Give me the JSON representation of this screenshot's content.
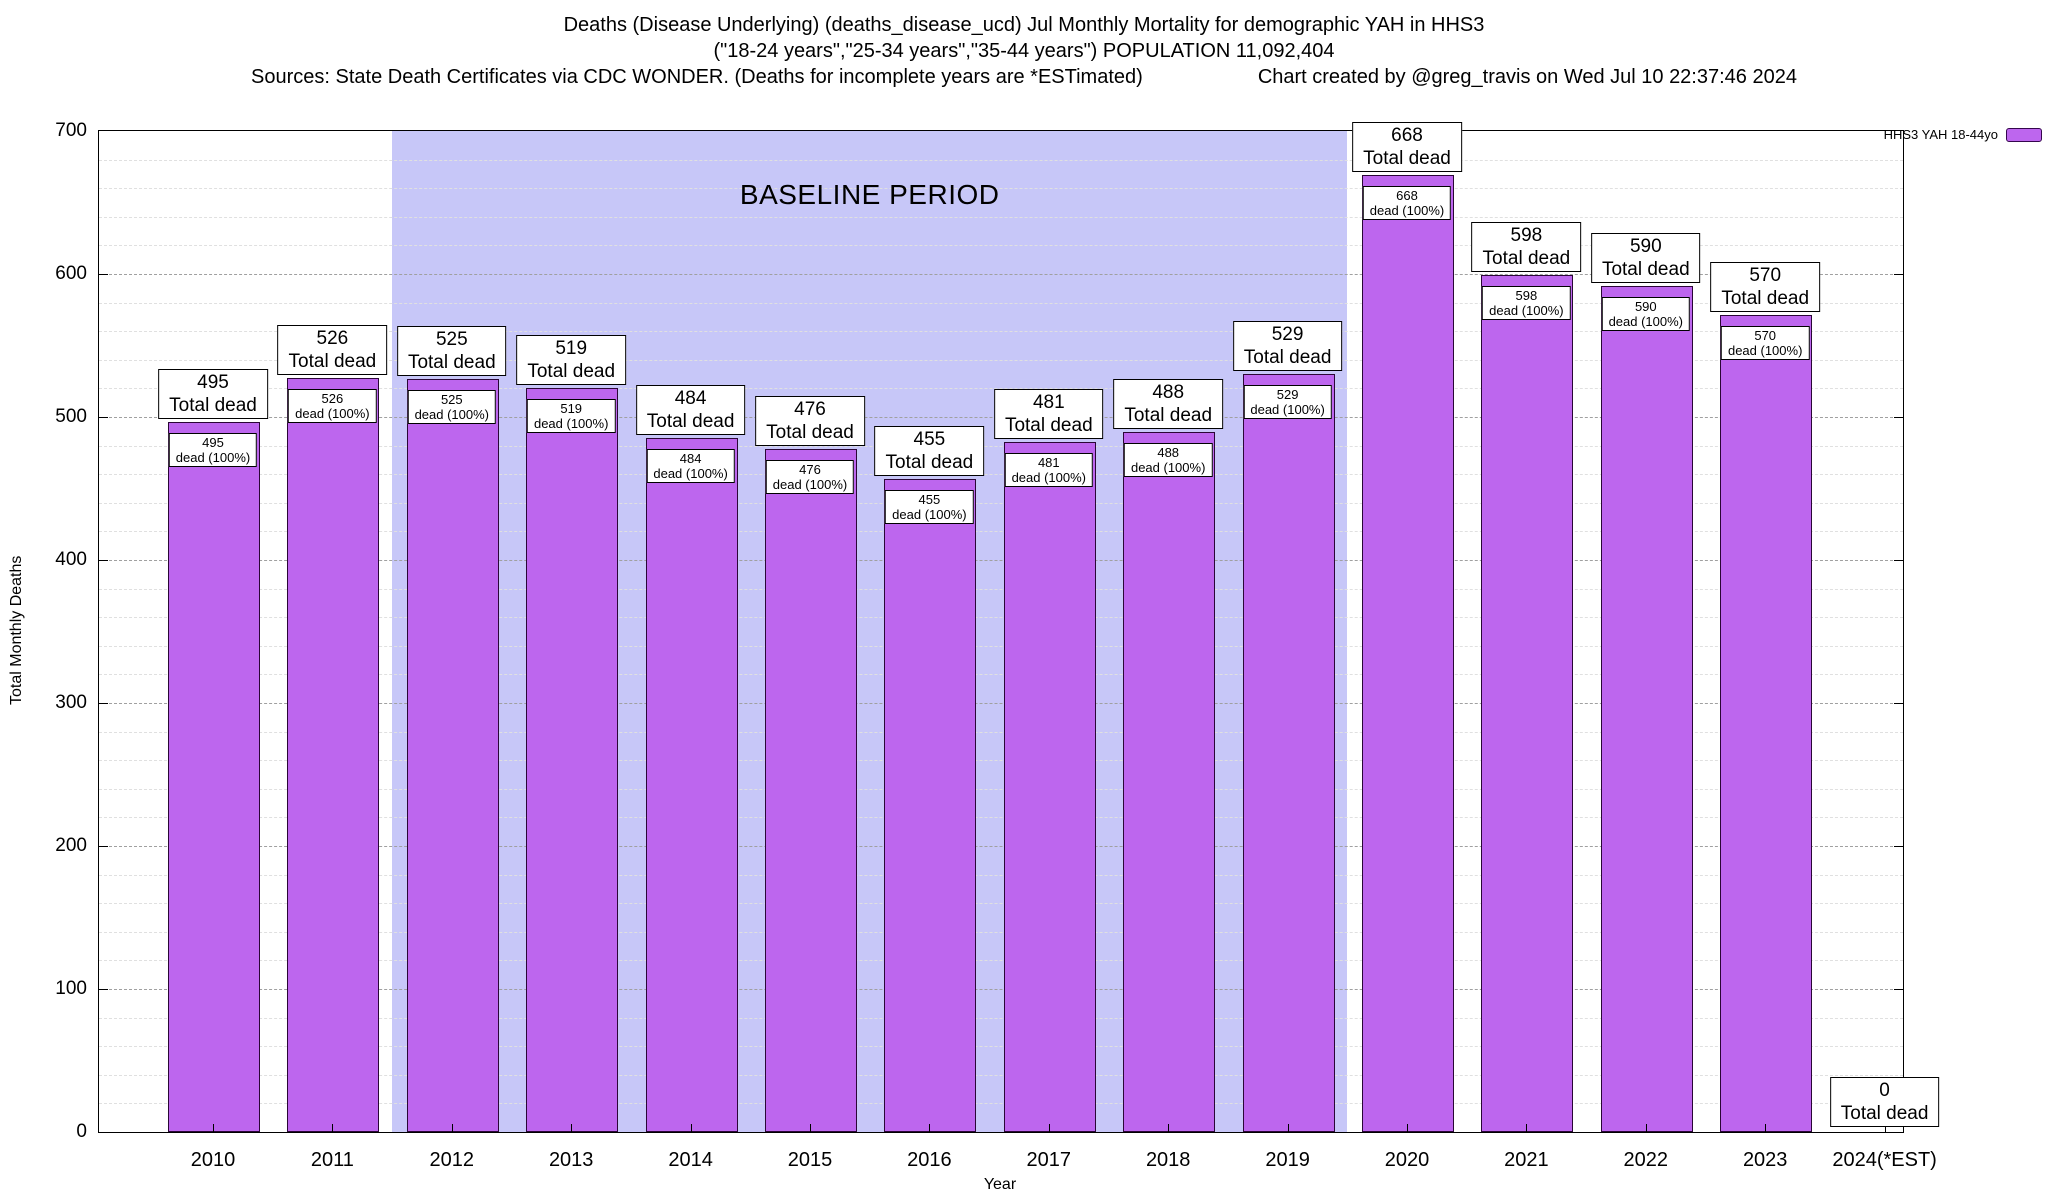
{
  "title": {
    "line1": "Deaths (Disease Underlying) (deaths_disease_ucd) Jul Monthly Mortality for demographic YAH in HHS3",
    "line2": "(\"18-24 years\",\"25-34 years\",\"35-44 years\") POPULATION 11,092,404",
    "line3_left": "Sources: State Death Certificates via CDC WONDER. (Deaths for incomplete years are *ESTimated)",
    "line3_right": "Chart created by @greg_travis on Wed Jul 10 22:37:46 2024"
  },
  "legend": {
    "label": "HHS3 YAH 18-44yo",
    "swatch_color": "#bd66ee"
  },
  "chart_data": {
    "type": "bar",
    "title": "Deaths (Disease Underlying) (deaths_disease_ucd) Jul Monthly Mortality for demographic YAH in HHS3",
    "categories": [
      "2010",
      "2011",
      "2012",
      "2013",
      "2014",
      "2015",
      "2016",
      "2017",
      "2018",
      "2019",
      "2020",
      "2021",
      "2022",
      "2023",
      "2024(*EST)"
    ],
    "values": [
      495,
      526,
      525,
      519,
      484,
      476,
      455,
      481,
      488,
      529,
      668,
      598,
      590,
      570,
      0
    ],
    "series_name": "HHS3 YAH 18-44yo",
    "xlabel": "Year",
    "ylabel": "Total Monthly Deaths",
    "ylim": [
      0,
      700
    ],
    "ytick_step": 100,
    "minor_grid_step": 20,
    "grid": "horizontal dashed, minor every 20, major every 100",
    "legend_position": "top-right",
    "bar_color": "#bd66ee",
    "bar_label_top_suffix": "Total dead",
    "bar_label_inner_suffix": "dead (100%)",
    "baseline_region": {
      "label": "BASELINE PERIOD",
      "from_category": "2012",
      "to_category": "2019",
      "color": "#c7c7f8"
    }
  }
}
